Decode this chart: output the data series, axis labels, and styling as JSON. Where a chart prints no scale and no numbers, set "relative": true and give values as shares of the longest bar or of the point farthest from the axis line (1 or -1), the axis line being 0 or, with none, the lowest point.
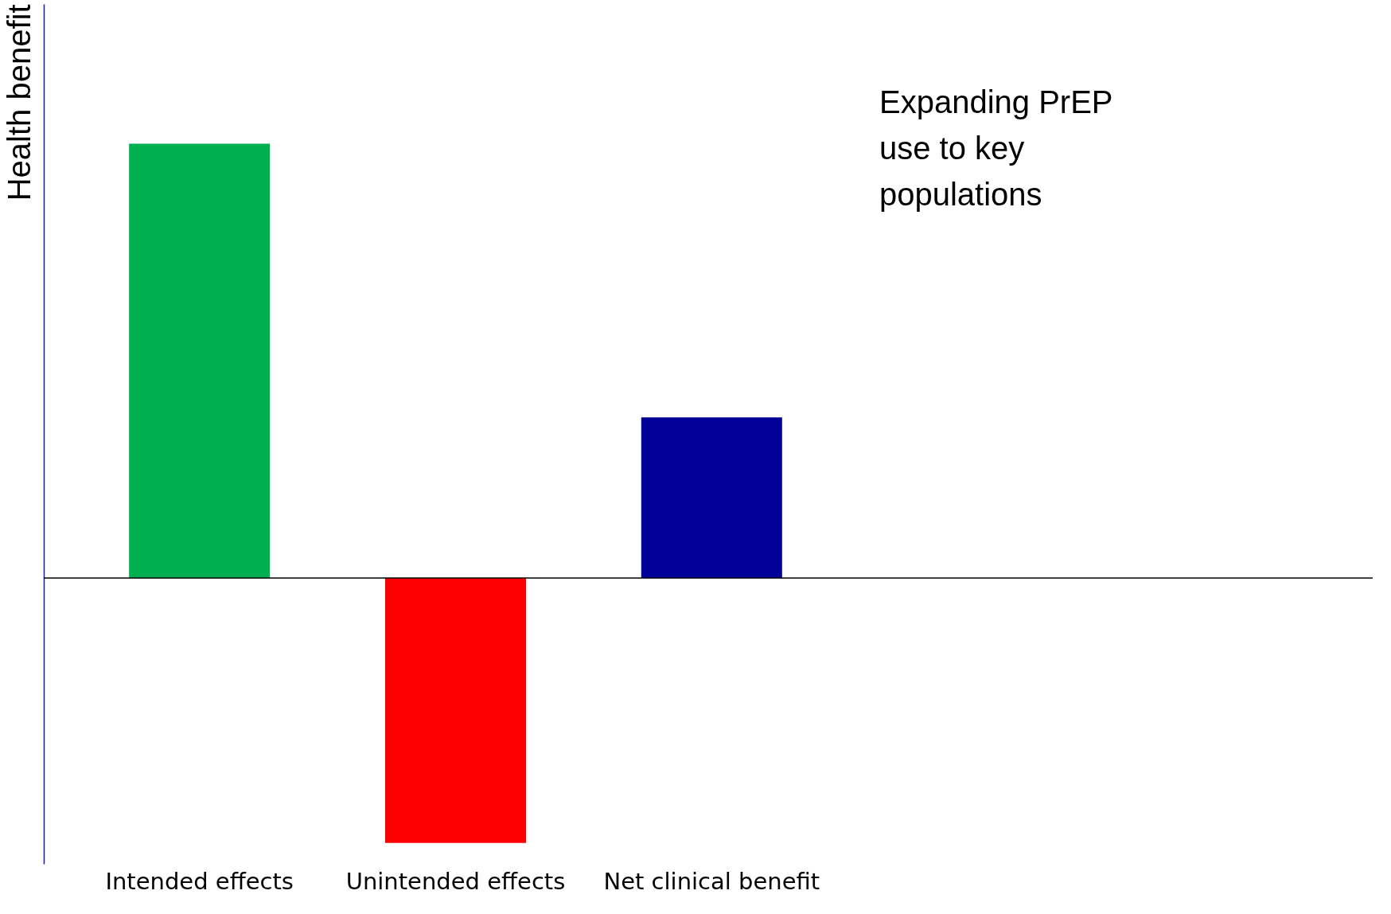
{
  "chart_data": {
    "type": "bar",
    "relative": true,
    "ylabel": "Health benefit",
    "categories": [
      "Intended effects",
      "Unintended effects",
      "Net clinical benefit"
    ],
    "values": [
      1,
      -0.61,
      0.37
    ],
    "colors": [
      "#00b050",
      "#ff0000",
      "#000099"
    ],
    "annotations": [
      "Expanding PrEP use to key populations"
    ],
    "legend": false,
    "grid": false
  }
}
